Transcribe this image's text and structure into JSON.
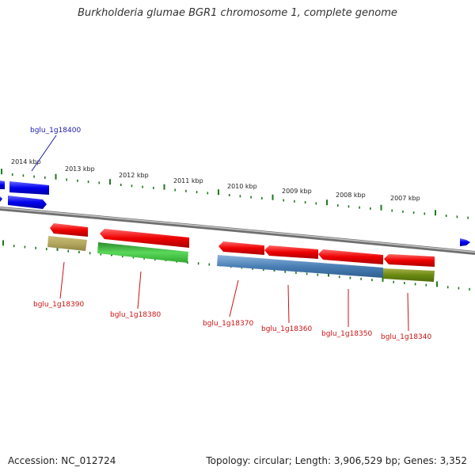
{
  "title": "Burkholderia glumae BGR1 chromosome 1, complete genome",
  "footer": {
    "accession": "Accession: NC_012724",
    "summary": "Topology: circular; Length: 3,906,529 bp; Genes: 3,352"
  },
  "colors": {
    "backbone": "#8a8a8a",
    "tick": "#1e7a1e",
    "forward_gene": "#1a1aff",
    "reverse_gene": "#ff1a1a",
    "blue_label": "#1a1aaa",
    "red_label": "#cc1111"
  },
  "ticks": [
    {
      "label": "2014 kbp"
    },
    {
      "label": "2013 kbp"
    },
    {
      "label": "2012 kbp"
    },
    {
      "label": "2011 kbp"
    },
    {
      "label": "2010 kbp"
    },
    {
      "label": "2009 kbp"
    },
    {
      "label": "2008 kbp"
    },
    {
      "label": "2007 kbp"
    }
  ],
  "genes": [
    {
      "id": "bglu_1g18400",
      "strand": "forward"
    },
    {
      "id": "bglu_1g18390",
      "strand": "reverse"
    },
    {
      "id": "bglu_1g18380",
      "strand": "reverse"
    },
    {
      "id": "bglu_1g18370",
      "strand": "reverse"
    },
    {
      "id": "bglu_1g18360",
      "strand": "reverse"
    },
    {
      "id": "bglu_1g18350",
      "strand": "reverse"
    },
    {
      "id": "bglu_1g18340",
      "strand": "reverse"
    }
  ]
}
